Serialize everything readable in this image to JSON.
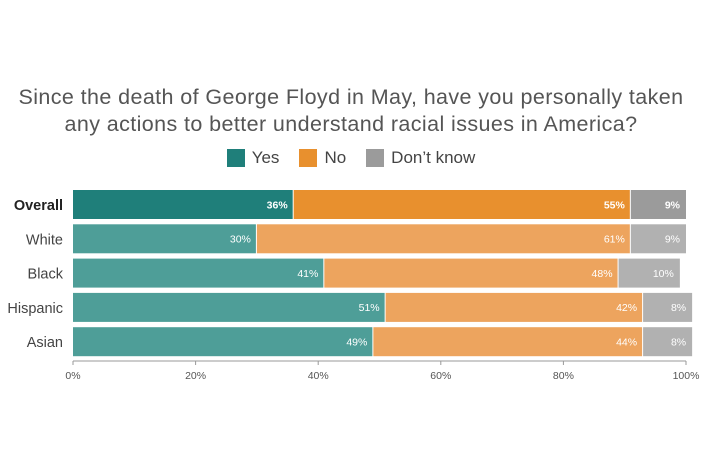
{
  "chart_data": {
    "type": "bar",
    "orientation": "horizontal",
    "stacked": true,
    "title": "Since the death of George Floyd in May, have you personally taken any actions to better understand racial issues in America?",
    "title_lines": [
      "Since the death of George Floyd in May, have you personally taken",
      "any actions to better understand racial issues in America?"
    ],
    "categories": [
      "Overall",
      "White",
      "Black",
      "Hispanic",
      "Asian"
    ],
    "highlight_category": "Overall",
    "series": [
      {
        "name": "Yes",
        "values": [
          36,
          30,
          41,
          51,
          49
        ],
        "labels": [
          "36%",
          "30%",
          "41%",
          "51%",
          "49%"
        ],
        "color": "#1f7f7a",
        "color_light": "#4e9e98"
      },
      {
        "name": "No",
        "values": [
          55,
          61,
          48,
          42,
          44
        ],
        "labels": [
          "55%",
          "61%",
          "48%",
          "42%",
          "44%"
        ],
        "color": "#e8902e",
        "color_light": "#eda45e"
      },
      {
        "name": "Don't know",
        "values": [
          9,
          9,
          10,
          8,
          8
        ],
        "labels": [
          "9%",
          "9%",
          "10%",
          "8%",
          "8%"
        ],
        "color": "#9b9b9b",
        "color_light": "#b1b1b1"
      }
    ],
    "legend_labels": [
      "Yes",
      "No",
      "Don’t know"
    ],
    "xlim": [
      0,
      100
    ],
    "xticks": [
      0,
      20,
      40,
      60,
      80,
      100
    ],
    "xtick_labels": [
      "0%",
      "20%",
      "40%",
      "60%",
      "80%",
      "100%"
    ],
    "legend_position": "top",
    "grid": false
  }
}
